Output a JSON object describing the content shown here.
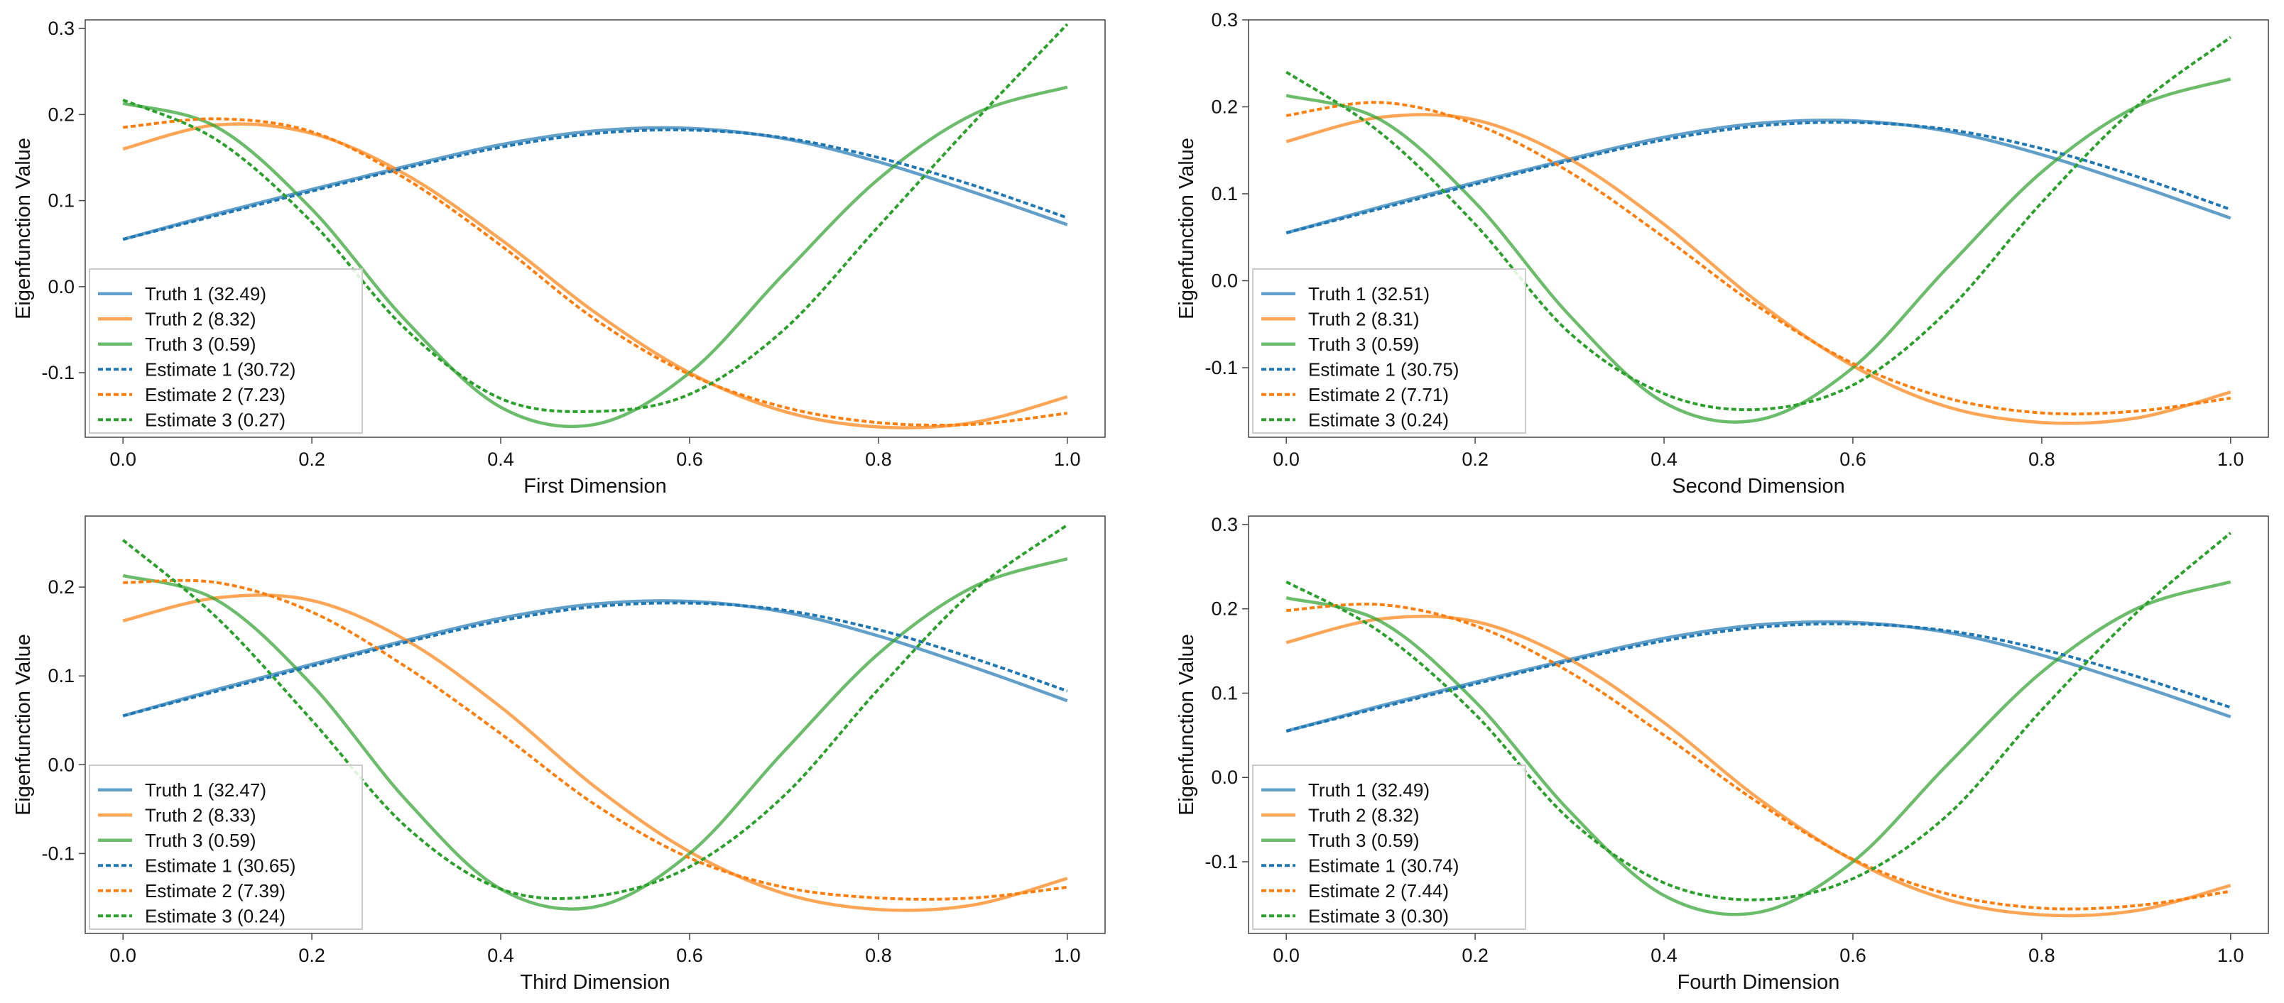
{
  "chart_data": [
    {
      "type": "line",
      "title": "",
      "xlabel": "First Dimension",
      "ylabel": "Eigenfunction Value",
      "xlim": [
        -0.04,
        1.04
      ],
      "ylim": [
        -0.175,
        0.31
      ],
      "xticks": [
        "0.0",
        "0.2",
        "0.4",
        "0.6",
        "0.8",
        "1.0"
      ],
      "yticks": [
        "-0.1",
        "0.0",
        "0.1",
        "0.2",
        "0.3"
      ],
      "x": [
        0,
        0.1,
        0.2,
        0.3,
        0.4,
        0.5,
        0.6,
        0.7,
        0.8,
        0.9,
        1.0
      ],
      "legend_position": "lower-left",
      "series": [
        {
          "name": "Truth 1 (32.49)",
          "color": "#1f77b4",
          "style": "solid",
          "values": [
            0.055,
            0.085,
            0.113,
            0.14,
            0.165,
            0.181,
            0.184,
            0.172,
            0.145,
            0.11,
            0.072
          ]
        },
        {
          "name": "Truth 2 (8.32)",
          "color": "#ff7f0e",
          "style": "solid",
          "values": [
            0.16,
            0.188,
            0.178,
            0.13,
            0.055,
            -0.03,
            -0.1,
            -0.145,
            -0.163,
            -0.158,
            -0.128
          ]
        },
        {
          "name": "Truth 3 (0.59)",
          "color": "#2ca02c",
          "style": "solid",
          "values": [
            0.213,
            0.185,
            0.09,
            -0.04,
            -0.14,
            -0.16,
            -0.1,
            0.015,
            0.125,
            0.2,
            0.232
          ]
        },
        {
          "name": "Estimate 1 (30.72)",
          "color": "#1f77b4",
          "style": "dashed",
          "values": [
            0.055,
            0.083,
            0.111,
            0.138,
            0.162,
            0.178,
            0.182,
            0.173,
            0.15,
            0.118,
            0.08
          ]
        },
        {
          "name": "Estimate 2 (7.23)",
          "color": "#ff7f0e",
          "style": "dashed",
          "values": [
            0.185,
            0.195,
            0.18,
            0.125,
            0.048,
            -0.038,
            -0.102,
            -0.14,
            -0.158,
            -0.16,
            -0.147
          ]
        },
        {
          "name": "Estimate 3 (0.27)",
          "color": "#2ca02c",
          "style": "dashed",
          "values": [
            0.217,
            0.17,
            0.075,
            -0.05,
            -0.13,
            -0.145,
            -0.125,
            -0.05,
            0.07,
            0.19,
            0.305
          ]
        }
      ]
    },
    {
      "type": "line",
      "title": "",
      "xlabel": "Second Dimension",
      "ylabel": "Eigenfunction Value",
      "xlim": [
        -0.04,
        1.04
      ],
      "ylim": [
        -0.18,
        0.3
      ],
      "xticks": [
        "0.0",
        "0.2",
        "0.4",
        "0.6",
        "0.8",
        "1.0"
      ],
      "yticks": [
        "-0.1",
        "0.0",
        "0.1",
        "0.2",
        "0.3"
      ],
      "x": [
        0,
        0.1,
        0.2,
        0.3,
        0.4,
        0.5,
        0.6,
        0.7,
        0.8,
        0.9,
        1.0
      ],
      "legend_position": "lower-left",
      "series": [
        {
          "name": "Truth 1 (32.51)",
          "color": "#1f77b4",
          "style": "solid",
          "values": [
            0.055,
            0.085,
            0.113,
            0.14,
            0.165,
            0.181,
            0.184,
            0.172,
            0.145,
            0.11,
            0.072
          ]
        },
        {
          "name": "Truth 2 (8.31)",
          "color": "#ff7f0e",
          "style": "solid",
          "values": [
            0.16,
            0.188,
            0.185,
            0.14,
            0.065,
            -0.025,
            -0.098,
            -0.145,
            -0.163,
            -0.158,
            -0.128
          ]
        },
        {
          "name": "Truth 3 (0.59)",
          "color": "#2ca02c",
          "style": "solid",
          "values": [
            0.213,
            0.185,
            0.09,
            -0.04,
            -0.14,
            -0.16,
            -0.1,
            0.015,
            0.125,
            0.2,
            0.232
          ]
        },
        {
          "name": "Estimate 1 (30.75)",
          "color": "#1f77b4",
          "style": "dashed",
          "values": [
            0.055,
            0.083,
            0.111,
            0.138,
            0.162,
            0.178,
            0.182,
            0.174,
            0.152,
            0.12,
            0.082
          ]
        },
        {
          "name": "Estimate 2 (7.71)",
          "color": "#ff7f0e",
          "style": "dashed",
          "values": [
            0.19,
            0.205,
            0.18,
            0.125,
            0.05,
            -0.03,
            -0.095,
            -0.135,
            -0.152,
            -0.15,
            -0.135
          ]
        },
        {
          "name": "Estimate 3 (0.24)",
          "color": "#2ca02c",
          "style": "dashed",
          "values": [
            0.24,
            0.17,
            0.065,
            -0.06,
            -0.13,
            -0.148,
            -0.12,
            -0.035,
            0.09,
            0.2,
            0.28
          ]
        }
      ]
    },
    {
      "type": "line",
      "title": "",
      "xlabel": "Third Dimension",
      "ylabel": "Eigenfunction Value",
      "xlim": [
        -0.04,
        1.04
      ],
      "ylim": [
        -0.19,
        0.28
      ],
      "xticks": [
        "0.0",
        "0.2",
        "0.4",
        "0.6",
        "0.8",
        "1.0"
      ],
      "yticks": [
        "-0.1",
        "0.0",
        "0.1",
        "0.2"
      ],
      "x": [
        0,
        0.1,
        0.2,
        0.3,
        0.4,
        0.5,
        0.6,
        0.7,
        0.8,
        0.9,
        1.0
      ],
      "legend_position": "lower-left",
      "series": [
        {
          "name": "Truth 1 (32.47)",
          "color": "#1f77b4",
          "style": "solid",
          "values": [
            0.055,
            0.085,
            0.113,
            0.14,
            0.165,
            0.181,
            0.184,
            0.172,
            0.145,
            0.11,
            0.072
          ]
        },
        {
          "name": "Truth 2 (8.33)",
          "color": "#ff7f0e",
          "style": "solid",
          "values": [
            0.162,
            0.188,
            0.185,
            0.14,
            0.065,
            -0.025,
            -0.098,
            -0.145,
            -0.163,
            -0.158,
            -0.128
          ]
        },
        {
          "name": "Truth 3 (0.59)",
          "color": "#2ca02c",
          "style": "solid",
          "values": [
            0.213,
            0.185,
            0.09,
            -0.04,
            -0.14,
            -0.16,
            -0.1,
            0.015,
            0.125,
            0.2,
            0.232
          ]
        },
        {
          "name": "Estimate 1 (30.65)",
          "color": "#1f77b4",
          "style": "dashed",
          "values": [
            0.055,
            0.083,
            0.111,
            0.138,
            0.162,
            0.178,
            0.182,
            0.174,
            0.152,
            0.12,
            0.083
          ]
        },
        {
          "name": "Estimate 2 (7.39)",
          "color": "#ff7f0e",
          "style": "dashed",
          "values": [
            0.205,
            0.205,
            0.172,
            0.11,
            0.035,
            -0.045,
            -0.105,
            -0.138,
            -0.15,
            -0.15,
            -0.138
          ]
        },
        {
          "name": "Estimate 3 (0.24)",
          "color": "#2ca02c",
          "style": "dashed",
          "values": [
            0.253,
            0.165,
            0.05,
            -0.07,
            -0.14,
            -0.148,
            -0.115,
            -0.035,
            0.085,
            0.195,
            0.27
          ]
        }
      ]
    },
    {
      "type": "line",
      "title": "",
      "xlabel": "Fourth Dimension",
      "ylabel": "Eigenfunction Value",
      "xlim": [
        -0.04,
        1.04
      ],
      "ylim": [
        -0.185,
        0.31
      ],
      "xticks": [
        "0.0",
        "0.2",
        "0.4",
        "0.6",
        "0.8",
        "1.0"
      ],
      "yticks": [
        "-0.1",
        "0.0",
        "0.1",
        "0.2",
        "0.3"
      ],
      "x": [
        0,
        0.1,
        0.2,
        0.3,
        0.4,
        0.5,
        0.6,
        0.7,
        0.8,
        0.9,
        1.0
      ],
      "legend_position": "lower-left",
      "series": [
        {
          "name": "Truth 1 (32.49)",
          "color": "#1f77b4",
          "style": "solid",
          "values": [
            0.055,
            0.085,
            0.113,
            0.14,
            0.165,
            0.181,
            0.184,
            0.172,
            0.145,
            0.11,
            0.072
          ]
        },
        {
          "name": "Truth 2 (8.32)",
          "color": "#ff7f0e",
          "style": "solid",
          "values": [
            0.16,
            0.188,
            0.185,
            0.14,
            0.065,
            -0.025,
            -0.098,
            -0.145,
            -0.163,
            -0.158,
            -0.128
          ]
        },
        {
          "name": "Truth 3 (0.59)",
          "color": "#2ca02c",
          "style": "solid",
          "values": [
            0.213,
            0.185,
            0.09,
            -0.04,
            -0.14,
            -0.16,
            -0.1,
            0.015,
            0.125,
            0.2,
            0.232
          ]
        },
        {
          "name": "Estimate 1 (30.74)",
          "color": "#1f77b4",
          "style": "dashed",
          "values": [
            0.055,
            0.083,
            0.111,
            0.138,
            0.162,
            0.178,
            0.182,
            0.174,
            0.152,
            0.12,
            0.083
          ]
        },
        {
          "name": "Estimate 2 (7.44)",
          "color": "#ff7f0e",
          "style": "dashed",
          "values": [
            0.198,
            0.205,
            0.18,
            0.125,
            0.05,
            -0.03,
            -0.097,
            -0.138,
            -0.155,
            -0.152,
            -0.135
          ]
        },
        {
          "name": "Estimate 3 (0.30)",
          "color": "#2ca02c",
          "style": "dashed",
          "values": [
            0.232,
            0.172,
            0.075,
            -0.05,
            -0.125,
            -0.145,
            -0.12,
            -0.045,
            0.08,
            0.195,
            0.29
          ]
        }
      ]
    }
  ]
}
